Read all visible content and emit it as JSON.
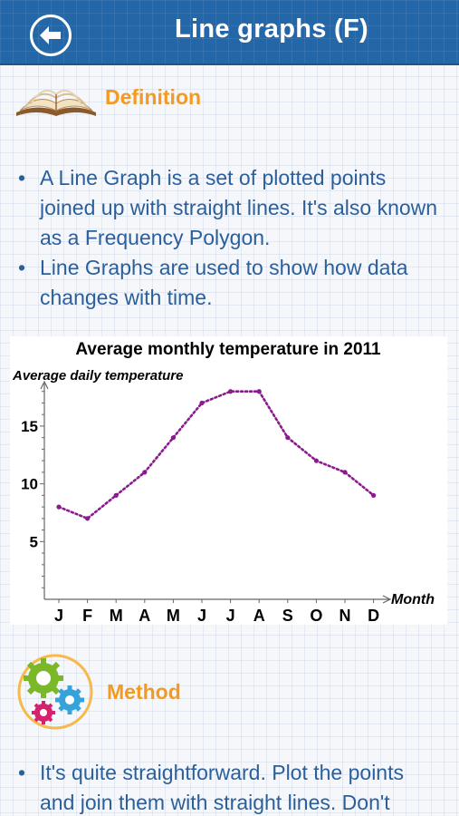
{
  "header": {
    "title": "Line graphs (F)"
  },
  "definition": {
    "title": "Definition",
    "icon": "open-book-icon",
    "bullets": [
      "A Line Graph is a set of plotted points joined up with straight lines. It's also known as a Frequency Polygon.",
      "Line Graphs are used to show how data changes with time."
    ]
  },
  "chart_data": {
    "type": "line",
    "title": "Average monthly temperature in 2011",
    "ylabel": "Average daily temperature",
    "xlabel": "Month",
    "categories": [
      "J",
      "F",
      "M",
      "A",
      "M",
      "J",
      "J",
      "A",
      "S",
      "O",
      "N",
      "D"
    ],
    "yticks": [
      "5",
      "10",
      "15"
    ],
    "values": [
      8,
      7,
      9,
      11,
      14,
      17,
      18,
      18,
      14,
      12,
      11,
      9
    ],
    "ylim": [
      0,
      19
    ],
    "line_style": "dotted",
    "color": "#8b1a8f"
  },
  "method": {
    "title": "Method",
    "icon": "gears-icon",
    "bullets": [
      "It's quite straightforward. Plot the points and join them with straight lines. Don't"
    ]
  },
  "colors": {
    "header": "#2367a8",
    "accent": "#f29a24",
    "text": "#2b5f9c"
  }
}
